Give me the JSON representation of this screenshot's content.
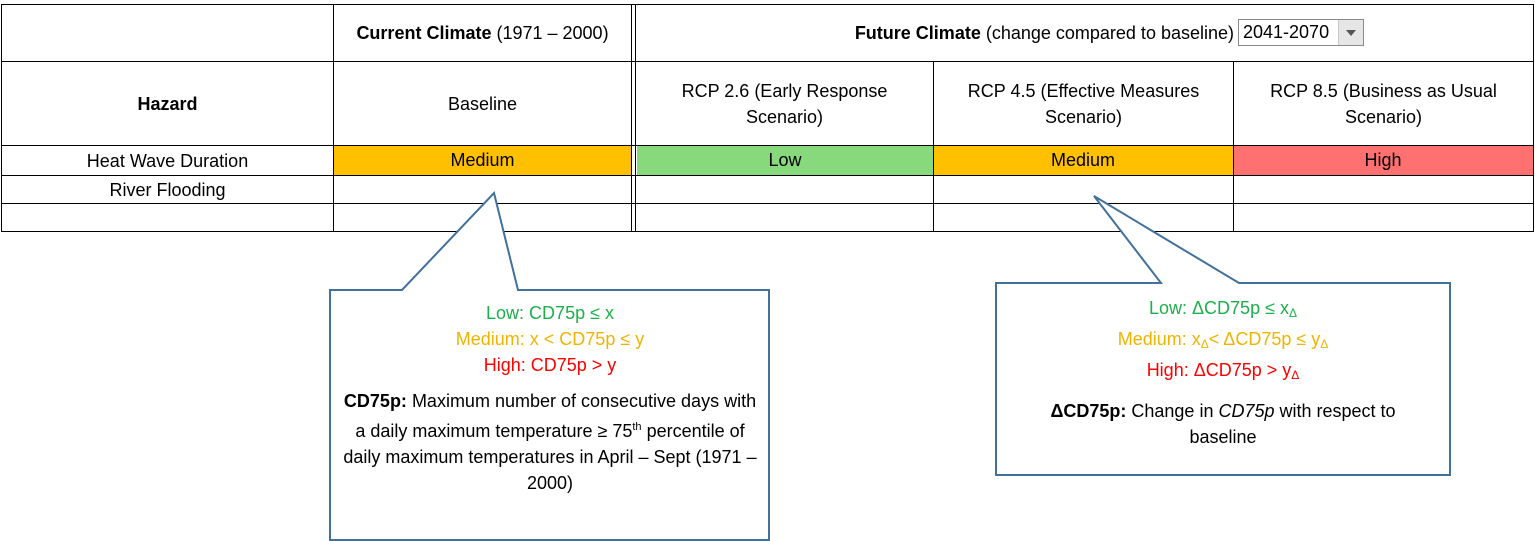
{
  "header": {
    "current_bold": "Current Climate",
    "current_rest": " (1971 – 2000)",
    "future_bold": "Future Climate",
    "future_rest": " (change compared to baseline)",
    "period_select": "2041-2070"
  },
  "columns": {
    "hazard": "Hazard",
    "baseline": "Baseline",
    "rcp26": "RCP 2.6 (Early Response Scenario)",
    "rcp45": "RCP 4.5 (Effective Measures Scenario)",
    "rcp85": "RCP 8.5 (Business as Usual Scenario)"
  },
  "rows": [
    {
      "hazard": "Heat Wave Duration",
      "baseline": "Medium",
      "rcp26": "Low",
      "rcp45": "Medium",
      "rcp85": "High"
    },
    {
      "hazard": "River Flooding",
      "baseline": "",
      "rcp26": "",
      "rcp45": "",
      "rcp85": ""
    },
    {
      "hazard": "",
      "baseline": "",
      "rcp26": "",
      "rcp45": "",
      "rcp85": ""
    }
  ],
  "callout_current": {
    "low": "Low: CD75p ≤ x",
    "medium": "Medium: x < CD75p ≤ y",
    "high": "High: CD75p > y",
    "term": "CD75p:",
    "def_1": " Maximum number of consecutive days with a daily maximum temperature ≥ 75",
    "def_sup": "th",
    "def_2": " percentile of daily maximum temperatures in April – Sept (1971 – 2000)"
  },
  "callout_future": {
    "low_a": "Low: ΔCD75p ≤ x",
    "sub": "Δ",
    "medium_a": "Medium: x",
    "medium_b": "< ΔCD75p ≤ y",
    "high_a": "High: ΔCD75p > y",
    "term": "ΔCD75p:",
    "def_1": " Change in ",
    "def_em": "CD75p",
    "def_2": " with respect to baseline"
  },
  "colors": {
    "low": "#88d87c",
    "medium": "#ffc000",
    "high": "#ff7070",
    "callout_border": "#41719c"
  }
}
